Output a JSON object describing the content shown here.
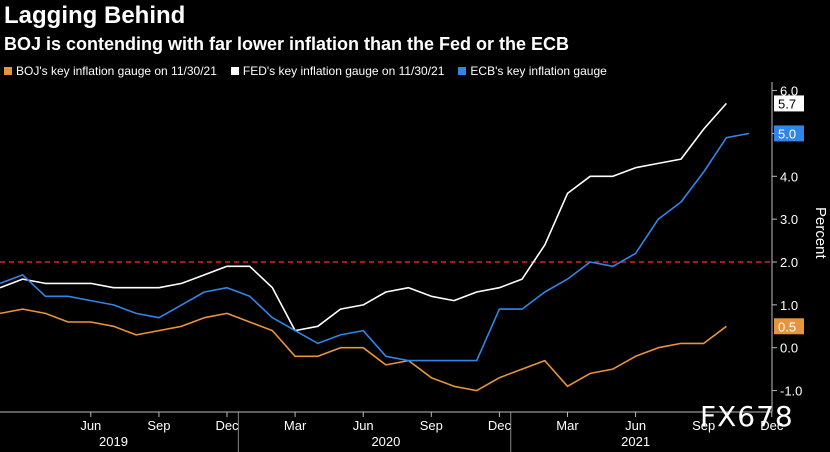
{
  "title": "Lagging Behind",
  "subtitle": "BOJ is contending with far lower inflation than the Fed or the ECB",
  "watermark": "FX678",
  "colors": {
    "boj": "#e8943a",
    "fed": "#ffffff",
    "ecb": "#2f86e8",
    "target": "#e02020"
  },
  "chart_data": {
    "type": "line",
    "title": "Lagging Behind",
    "subtitle": "BOJ is contending with far lower inflation than the Fed or the ECB",
    "ylabel": "Percent",
    "ylim": [
      -1.5,
      6.2
    ],
    "yticks": [
      -1.0,
      0.0,
      1.0,
      2.0,
      3.0,
      4.0,
      5.0,
      6.0
    ],
    "ytick_labels": [
      "-1.0",
      "0.0",
      "1.0",
      "2.0",
      "3.0",
      "4.0",
      "5.0",
      "6.0"
    ],
    "reference_line": 2.0,
    "x": [
      "2019-02",
      "2019-03",
      "2019-04",
      "2019-05",
      "2019-06",
      "2019-07",
      "2019-08",
      "2019-09",
      "2019-10",
      "2019-11",
      "2019-12",
      "2020-01",
      "2020-02",
      "2020-03",
      "2020-04",
      "2020-05",
      "2020-06",
      "2020-07",
      "2020-08",
      "2020-09",
      "2020-10",
      "2020-11",
      "2020-12",
      "2021-01",
      "2021-02",
      "2021-03",
      "2021-04",
      "2021-05",
      "2021-06",
      "2021-07",
      "2021-08",
      "2021-09",
      "2021-10",
      "2021-11"
    ],
    "x_ticks": [
      "Jun",
      "Sep",
      "Dec",
      "Mar",
      "Jun",
      "Sep",
      "Dec",
      "Mar",
      "Jun",
      "Sep",
      "Dec"
    ],
    "x_tick_months": [
      "2019-06",
      "2019-09",
      "2019-12",
      "2020-03",
      "2020-06",
      "2020-09",
      "2020-12",
      "2021-03",
      "2021-06",
      "2021-09",
      "2021-12"
    ],
    "year_labels": [
      "2019",
      "2020",
      "2021"
    ],
    "year_label_months": [
      "2019-07",
      "2020-07",
      "2021-06"
    ],
    "series": [
      {
        "name": "BOJ's key inflation gauge on 11/30/21",
        "color": "#e8943a",
        "values": [
          0.8,
          0.9,
          0.8,
          0.6,
          0.6,
          0.5,
          0.3,
          0.4,
          0.5,
          0.7,
          0.8,
          0.6,
          0.4,
          -0.2,
          -0.2,
          0.0,
          0.0,
          -0.4,
          -0.3,
          -0.7,
          -0.9,
          -1.0,
          -0.7,
          -0.5,
          -0.3,
          -0.9,
          -0.6,
          -0.5,
          -0.2,
          0.0,
          0.1,
          0.1,
          0.5,
          null
        ],
        "end_label": "0.5"
      },
      {
        "name": "FED's key inflation gauge on 11/30/21",
        "color": "#ffffff",
        "values": [
          1.4,
          1.6,
          1.5,
          1.5,
          1.5,
          1.4,
          1.4,
          1.4,
          1.5,
          1.7,
          1.9,
          1.9,
          1.4,
          0.4,
          0.5,
          0.9,
          1.0,
          1.3,
          1.4,
          1.2,
          1.1,
          1.3,
          1.4,
          1.6,
          2.4,
          3.6,
          4.0,
          4.0,
          4.2,
          4.3,
          4.4,
          5.1,
          5.7,
          null
        ],
        "end_label": "5.7"
      },
      {
        "name": "ECB's key inflation gauge",
        "color": "#2f86e8",
        "values": [
          1.5,
          1.7,
          1.2,
          1.2,
          1.1,
          1.0,
          0.8,
          0.7,
          1.0,
          1.3,
          1.4,
          1.2,
          0.7,
          0.4,
          0.1,
          0.3,
          0.4,
          -0.2,
          -0.3,
          -0.3,
          -0.3,
          -0.3,
          0.9,
          0.9,
          1.3,
          1.6,
          2.0,
          1.9,
          2.2,
          3.0,
          3.4,
          4.1,
          4.9,
          5.0
        ],
        "end_label": "5.0"
      }
    ]
  }
}
